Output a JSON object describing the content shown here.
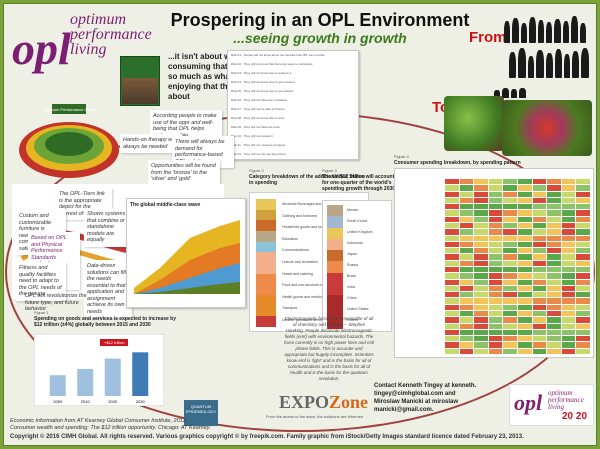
{
  "title": "Prospering in an OPL Environment",
  "subtitle": "...seeing growth in growth",
  "from_label": "From",
  "to_label": "To",
  "logo": {
    "mark": "opl",
    "line1": "optimum",
    "line2": "performance",
    "line3": "living"
  },
  "quote_main": "...it isn't about what they are consuming that they shouldn't so much as what they could be enjoying that they don't know about",
  "notes": {
    "accord": "According people to make use of the oppr and well-being that OPL helps make possible",
    "handson": "Hands-on therapy will always be needed",
    "demand": "There will always be demand for performance-based OPL solutions",
    "opportunities": "Opportunities will be found from the 'bronze' to the 'silver' and 'gold'",
    "ribbon1": "The OPL-Tiers link is the appropriate depict for the interest of Things",
    "ribbon2": "Shows systems that combine or standalone models are equally",
    "ribbon3": "Custom and customizable furniture is needed for comfort and for safer lives and",
    "ribbon4": "Based on OPL and Physical Performance Standards evaluating, applying the appropriate qualifiers",
    "ribbon5": "Fitness and quality facilities need to adapt to the OPL needs of the groups",
    "ribbon6": "Data-driven solutions can fill the needs essential to that application and assignment achieve its own needs",
    "ribbon7": "OPL will revolutionize the future type, and future behavior"
  },
  "middle_class_title": "The global middle-class wave",
  "fig2": {
    "label": "Figure 2",
    "title": "Category breakdown of the additional $12 trillion in spending"
  },
  "fig3": {
    "label": "Figure 3",
    "title": "The United States will account for one-quarter of the world's spending growth through 2030"
  },
  "fig4": {
    "label": "Figure 4",
    "title": "Consumer spending breakdown, by spending pattern"
  },
  "fig1": {
    "label": "Figure 1",
    "title": "Spending on goods and services is expected to increase by $12 trillion (±4%) globally between 2015 and 2030"
  },
  "categories": [
    "Alcoholic Beverages and tobacco",
    "Clothing and footwear",
    "Household goods and services",
    "Education",
    "Communications",
    "Leisure and recreation",
    "Hotels and catering",
    "Food and non-alcoholic beverages",
    "Health goods and medical services",
    "Transport",
    "Durable goods and services"
  ],
  "countries": [
    "Mexico",
    "South Korea",
    "United Kingdom",
    "Indonesia",
    "Japan",
    "Russia",
    "Brazil",
    "India",
    "China",
    "United States",
    "Others"
  ],
  "expo": {
    "a": "EXPO",
    "b": "Zone",
    "sub": "From the atoms to the stars, the solutions are informed"
  },
  "contact": [
    "Contact Kenneth Tingey at kenneth.",
    "tingey@cimhglobal.com and",
    "Miroslaw Manicki at miroslaw",
    "manicki@gmail.com."
  ],
  "footer": [
    "Economic information from AT Kearney Global Consumer Institute, 2012.",
    "Consumer wealth and spending: The $12 trillion opportunity. Chicago: AT Kearney."
  ],
  "copyright": "Copyright © 2016 CIMH Global. All rights reserved. Various graphics copyright © by freepik.com. Family graphic from iStock/Getty Images standard licence dated February 23, 2013.",
  "quotes_text": "Electromagnetic forces are responsible of all of chemistry and biology — Stephen Hawking. People associate electromagnetic fields (emf) with environmental hazards. The force currently is on high power lines and cell phone fields. This is accurate and appropriate but hugely incomplete. Scientists know emf is 'light' and is the basis for all of communications and is the basis for all of health and is the basis for the quantum revolution.",
  "badge": "20 20",
  "chart_data": {
    "type": "bar",
    "title": "Spending on goods and services is expected to increase by $12 trillion (±4%) globally between 2015 and 2030",
    "categories": [
      "2000",
      "2010",
      "2020",
      "2030"
    ],
    "values": [
      20,
      26,
      36,
      42
    ],
    "annotation": "+$12 trillion",
    "xlabel": "",
    "ylabel": "",
    "ylim": [
      0,
      50
    ]
  }
}
